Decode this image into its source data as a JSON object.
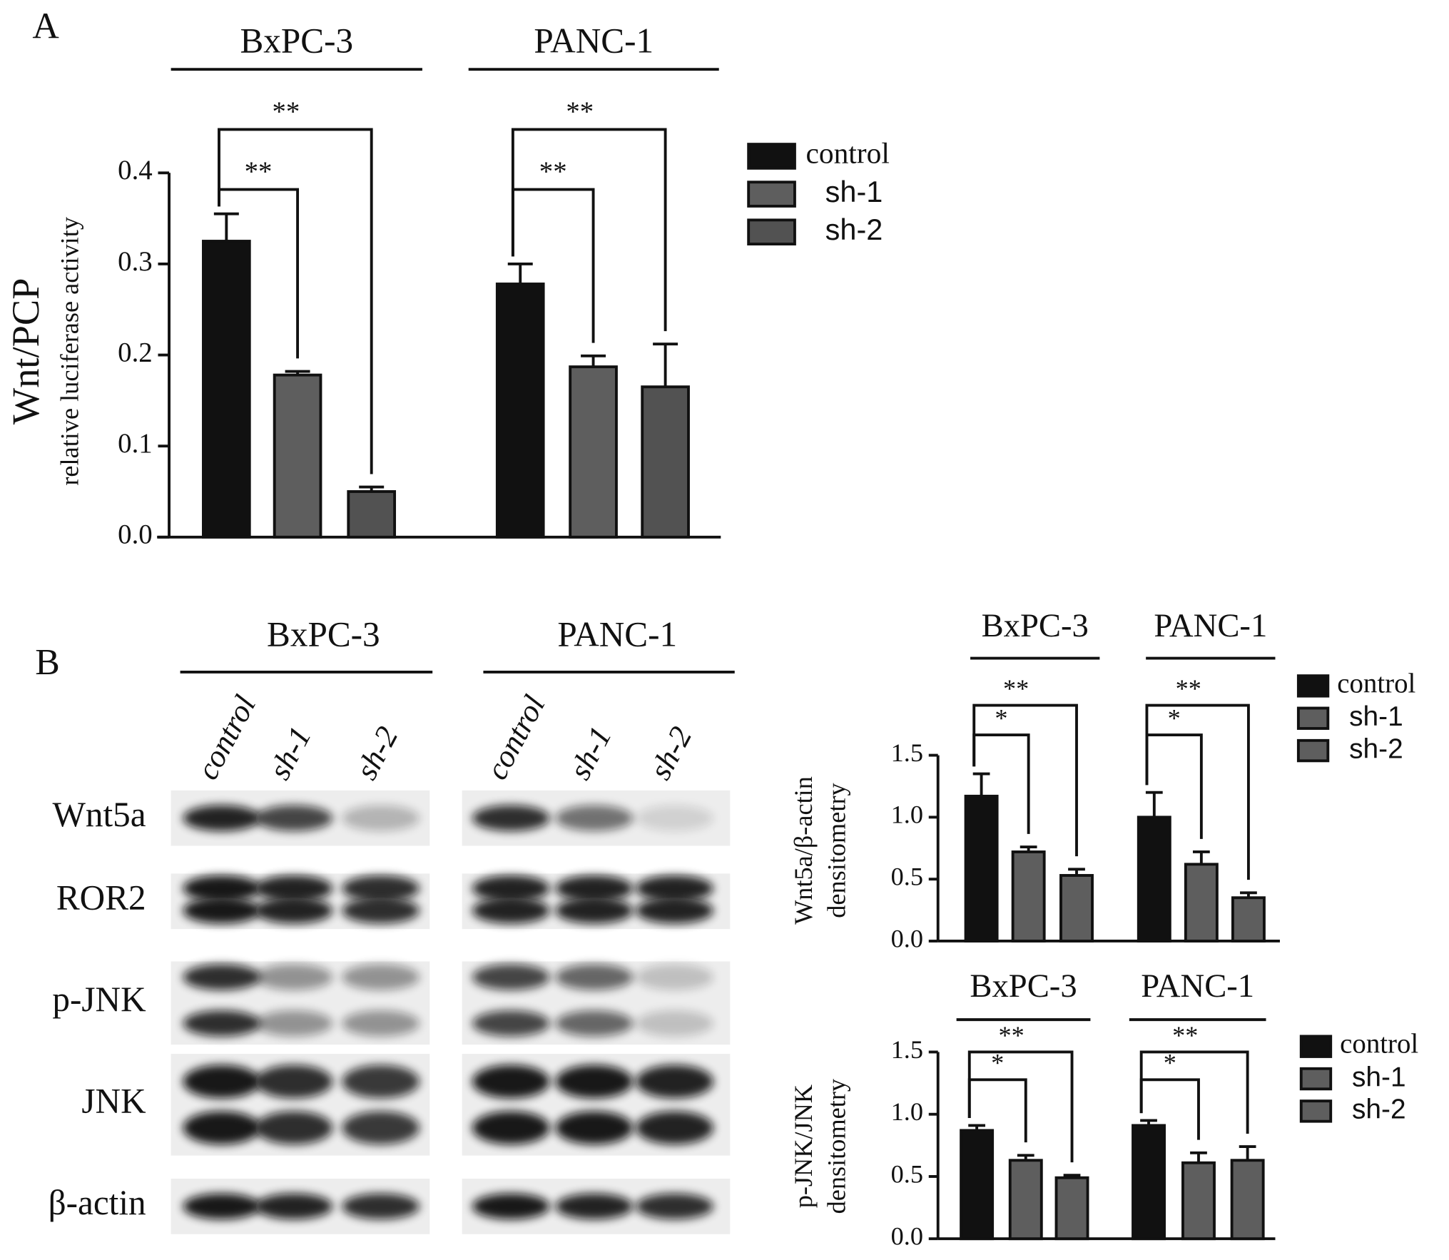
{
  "panels": [
    "A",
    "B"
  ],
  "blot": {
    "groups": [
      {
        "name": "BxPC-3",
        "lanes": [
          "control",
          "sh-1",
          "sh-2"
        ]
      },
      {
        "name": "PANC-1",
        "lanes": [
          "control",
          "sh-1",
          "sh-2"
        ]
      }
    ],
    "rows": [
      "Wnt5a",
      "ROR2",
      "p-JNK",
      "JNK",
      "β-actin"
    ]
  },
  "chart_data": [
    {
      "type": "bar",
      "ylabel": [
        "Wnt/PCP",
        "relative luciferase activity"
      ],
      "categories": [
        "BxPC-3",
        "PANC-1"
      ],
      "series": [
        {
          "name": "control",
          "color": "#111111",
          "values": [
            0.325,
            0.278
          ],
          "errors": [
            0.03,
            0.022
          ]
        },
        {
          "name": "sh-1",
          "color": "#5e5e5e",
          "values": [
            0.178,
            0.187
          ],
          "errors": [
            0.004,
            0.012
          ]
        },
        {
          "name": "sh-2",
          "color": "#525252",
          "values": [
            0.05,
            0.165
          ],
          "errors": [
            0.005,
            0.047
          ]
        }
      ],
      "ylim": [
        0,
        0.4
      ],
      "yticks": [
        {
          "value": 0,
          "label": "0.0"
        },
        0.1,
        0.2,
        0.3,
        0.4
      ],
      "annotations": [
        {
          "text": "**",
          "group": "BxPC-3",
          "between": [
            "control",
            "sh-1"
          ]
        },
        {
          "text": "**",
          "group": "BxPC-3",
          "between": [
            "control",
            "sh-2"
          ]
        },
        {
          "text": "**",
          "group": "PANC-1",
          "between": [
            "control",
            "sh-1"
          ]
        },
        {
          "text": "**",
          "group": "PANC-1",
          "between": [
            "control",
            "sh-2"
          ]
        }
      ],
      "legend": "right"
    },
    {
      "type": "bar",
      "ylabel": [
        "Wnt5a/β-actin",
        "densitometry"
      ],
      "categories": [
        "BxPC-3",
        "PANC-1"
      ],
      "series": [
        {
          "name": "control",
          "color": "#111111",
          "values": [
            1.17,
            1.0
          ],
          "errors": [
            0.18,
            0.2
          ]
        },
        {
          "name": "sh-1",
          "color": "#5e5e5e",
          "values": [
            0.72,
            0.62
          ],
          "errors": [
            0.04,
            0.1
          ]
        },
        {
          "name": "sh-2",
          "color": "#5e5e5e",
          "values": [
            0.53,
            0.35
          ],
          "errors": [
            0.05,
            0.04
          ]
        }
      ],
      "ylim": [
        0,
        1.5
      ],
      "yticks": [
        {
          "value": 0,
          "label": "0.0"
        },
        0.5,
        {
          "value": 1,
          "label": "1.0"
        },
        1.5
      ],
      "annotations": [
        {
          "text": "*",
          "group": "BxPC-3",
          "between": [
            "control",
            "sh-1"
          ]
        },
        {
          "text": "**",
          "group": "BxPC-3",
          "between": [
            "control",
            "sh-2"
          ]
        },
        {
          "text": "*",
          "group": "PANC-1",
          "between": [
            "control",
            "sh-1"
          ]
        },
        {
          "text": "**",
          "group": "PANC-1",
          "between": [
            "control",
            "sh-2"
          ]
        }
      ],
      "legend": "right"
    },
    {
      "type": "bar",
      "ylabel": [
        "p-JNK/JNK",
        "densitometry"
      ],
      "categories": [
        "BxPC-3",
        "PANC-1"
      ],
      "series": [
        {
          "name": "control",
          "color": "#111111",
          "values": [
            0.87,
            0.91
          ],
          "errors": [
            0.04,
            0.04
          ]
        },
        {
          "name": "sh-1",
          "color": "#5e5e5e",
          "values": [
            0.63,
            0.61
          ],
          "errors": [
            0.04,
            0.08
          ]
        },
        {
          "name": "sh-2",
          "color": "#5e5e5e",
          "values": [
            0.49,
            0.63
          ],
          "errors": [
            0.02,
            0.11
          ]
        }
      ],
      "ylim": [
        0,
        1.5
      ],
      "yticks": [
        {
          "value": 0,
          "label": "0.0"
        },
        0.5,
        {
          "value": 1,
          "label": "1.0"
        },
        1.5
      ],
      "annotations": [
        {
          "text": "*",
          "group": "BxPC-3",
          "between": [
            "control",
            "sh-1"
          ]
        },
        {
          "text": "**",
          "group": "BxPC-3",
          "between": [
            "control",
            "sh-2"
          ]
        },
        {
          "text": "*",
          "group": "PANC-1",
          "between": [
            "control",
            "sh-1"
          ]
        },
        {
          "text": "**",
          "group": "PANC-1",
          "between": [
            "control",
            "sh-2"
          ]
        }
      ],
      "legend": "right"
    }
  ]
}
